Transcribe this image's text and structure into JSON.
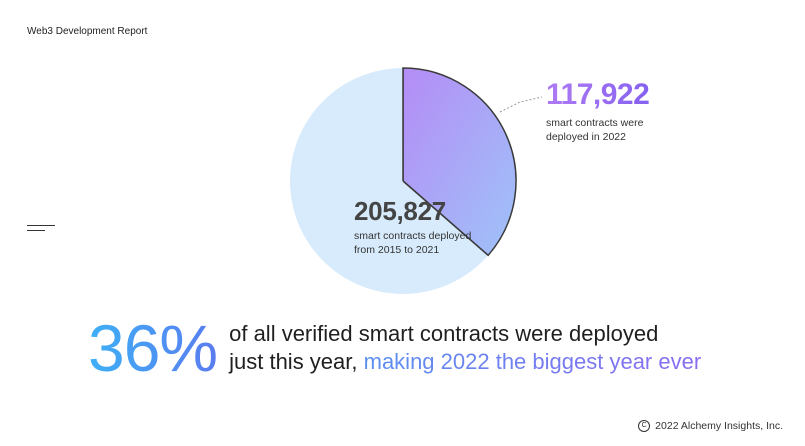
{
  "header": {
    "title": "Web3 Development Report"
  },
  "chart_data": {
    "type": "pie",
    "title": "",
    "slices": [
      {
        "label": "117,922",
        "caption": "smart contracts were deployed in 2022",
        "value": 117922,
        "color": "#a98bf5"
      },
      {
        "label": "205,827",
        "caption": "smart contracts deployed from 2015 to 2021",
        "value": 205827,
        "color": "#d7ebfc"
      }
    ]
  },
  "headline": {
    "percent": "36%",
    "line1": "of all verified smart contracts were deployed",
    "line2_plain": "just this year, ",
    "line2_accent": "making 2022 the biggest year ever"
  },
  "footer": {
    "copyright": "2022 Alchemy Insights, Inc.",
    "copyright_icon": "copyright-icon"
  }
}
